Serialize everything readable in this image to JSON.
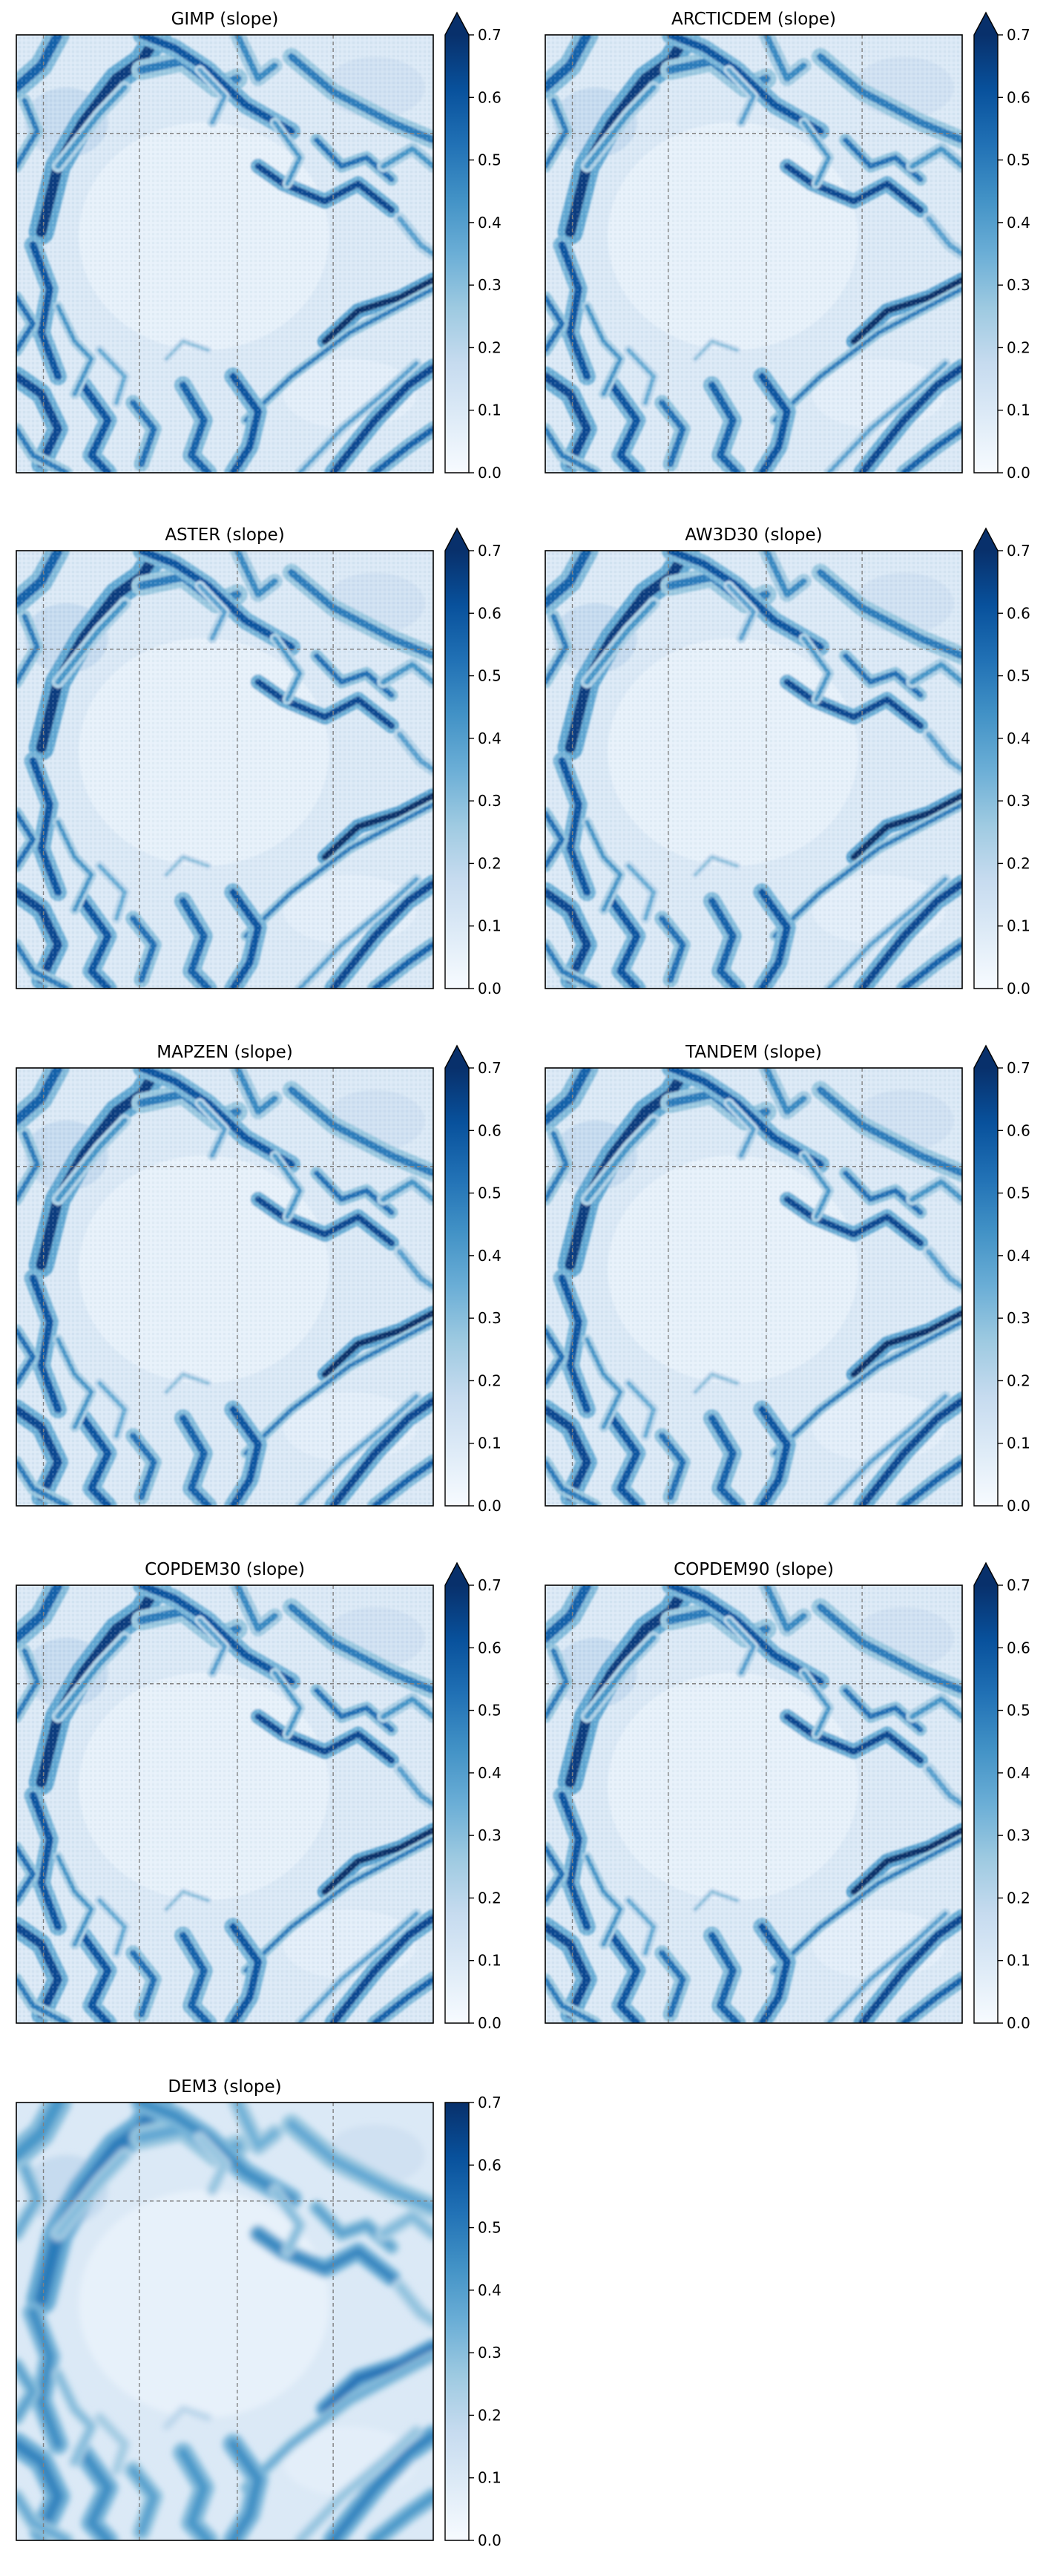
{
  "figure": {
    "colormap": "Blues",
    "colormap_stops": [
      "#f7fbff",
      "#deebf7",
      "#c6dbef",
      "#9ecae1",
      "#6baed6",
      "#4292c6",
      "#2171b5",
      "#08519c",
      "#08306b"
    ],
    "colorbar_ticks": [
      "0.0",
      "0.1",
      "0.2",
      "0.3",
      "0.4",
      "0.5",
      "0.6",
      "0.7"
    ]
  },
  "chart_data": [
    {
      "type": "heatmap",
      "title": "GIMP (slope)",
      "colorbar_range": [
        0.0,
        0.7
      ],
      "colorbar_extend": "max",
      "smooth": false
    },
    {
      "type": "heatmap",
      "title": "ARCTICDEM (slope)",
      "colorbar_range": [
        0.0,
        0.7
      ],
      "colorbar_extend": "max",
      "smooth": false
    },
    {
      "type": "heatmap",
      "title": "ASTER (slope)",
      "colorbar_range": [
        0.0,
        0.7
      ],
      "colorbar_extend": "max",
      "smooth": false
    },
    {
      "type": "heatmap",
      "title": "AW3D30 (slope)",
      "colorbar_range": [
        0.0,
        0.7
      ],
      "colorbar_extend": "max",
      "smooth": false
    },
    {
      "type": "heatmap",
      "title": "MAPZEN (slope)",
      "colorbar_range": [
        0.0,
        0.7
      ],
      "colorbar_extend": "max",
      "smooth": false
    },
    {
      "type": "heatmap",
      "title": "TANDEM (slope)",
      "colorbar_range": [
        0.0,
        0.7
      ],
      "colorbar_extend": "max",
      "smooth": false
    },
    {
      "type": "heatmap",
      "title": "COPDEM30 (slope)",
      "colorbar_range": [
        0.0,
        0.7
      ],
      "colorbar_extend": "max",
      "smooth": false
    },
    {
      "type": "heatmap",
      "title": "COPDEM90 (slope)",
      "colorbar_range": [
        0.0,
        0.7
      ],
      "colorbar_extend": "max",
      "smooth": false
    },
    {
      "type": "heatmap",
      "title": "DEM3 (slope)",
      "colorbar_range": [
        0.0,
        0.7
      ],
      "colorbar_extend": "neither",
      "smooth": true
    }
  ]
}
